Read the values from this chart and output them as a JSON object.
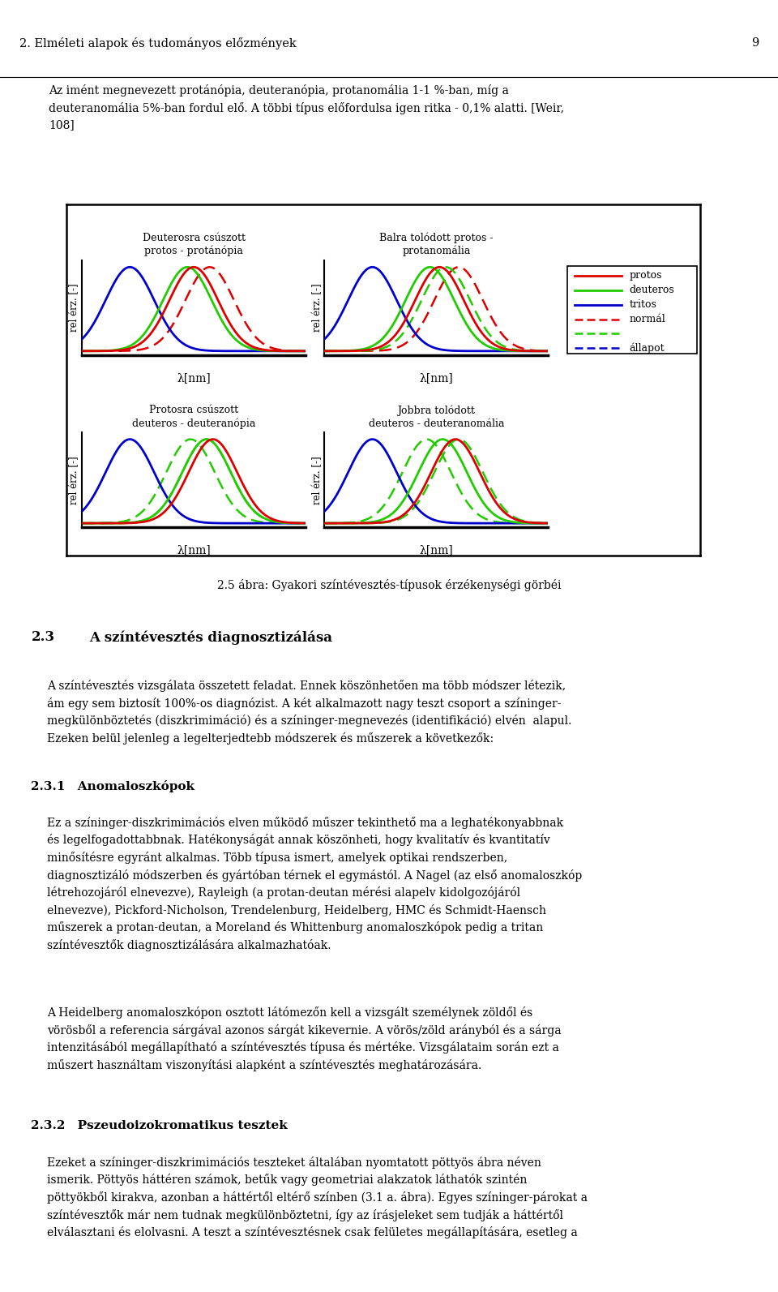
{
  "figure_width": 9.6,
  "figure_height": 15.93,
  "bg_color": "#ffffff",
  "page_title": "2. Elméleti alapok és tudományos előzmények",
  "page_number": "9",
  "para_text": "Az imént megnevezett protánópia, deuteranópia, protanomália 1-1 %-ban, míg a deuteranommália 5%-ban fordul elő. A többi típus előfordulsa igen ritka - 0,1% alatti. [Weir, 108]",
  "caption": "2.5 ábra: Gyakori színtévesztés-típusok érzékenységi görbéi",
  "titles_top": [
    "Deuterosra csúszott\nprotos - protánópia",
    "Balra tolódott protos -\nprotanomália"
  ],
  "titles_bot": [
    "Protosra csúszott\ndeuteros - deuteranópia",
    "Jobbra tolódott\ndeuteros - deuteranomália"
  ],
  "ylabel": "rel érz. [-]",
  "xlabel": "λ[nm]",
  "legend_solid": [
    {
      "label": "protos",
      "color": "#dd0000"
    },
    {
      "label": "deuteros",
      "color": "#22cc00"
    },
    {
      "label": "tritos",
      "color": "#0000cc"
    }
  ],
  "legend_dotted": [
    {
      "label": "normál",
      "color": "#dd0000"
    },
    {
      "label": "",
      "color": "#22cc00"
    },
    {
      "label": "állapot",
      "color": "#0000cc"
    }
  ],
  "c_red": "#dd0000",
  "c_green": "#22cc00",
  "c_blue": "#0000cc",
  "mu_blue": 445,
  "mu_green": 535,
  "mu_red": 570,
  "sigma": 38,
  "x_min": 370,
  "x_max": 720
}
